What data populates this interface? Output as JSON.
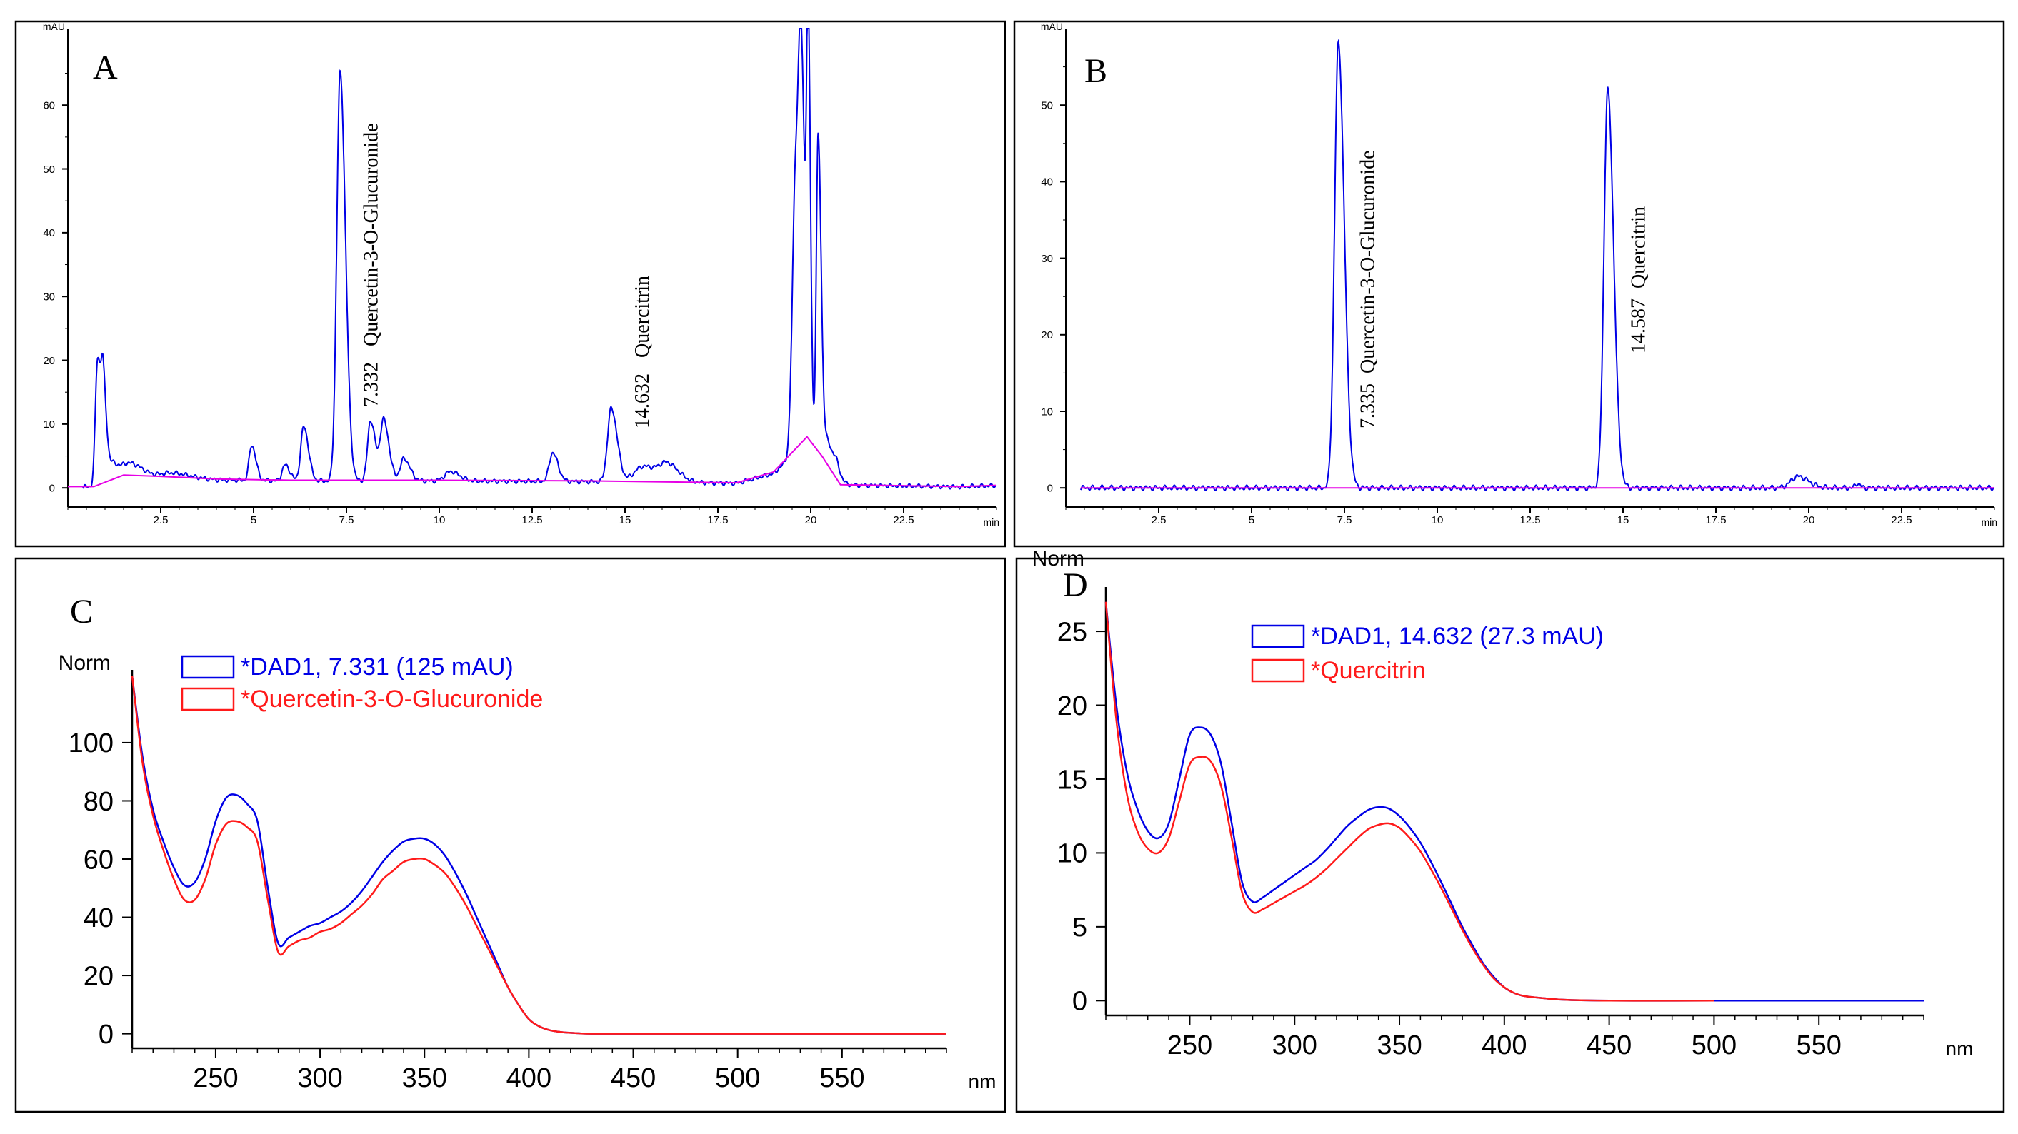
{
  "colors": {
    "sample": "#0000e6",
    "reference": "#ff1a1a",
    "baseline": "#e600e6",
    "axis": "#000000"
  },
  "chart_data": [
    {
      "id": "A",
      "panel_label": "A",
      "type": "line",
      "title": "",
      "ylabel": "mAU",
      "xlabel": "min",
      "xlim": [
        0,
        25
      ],
      "ylim": [
        -3,
        72
      ],
      "x_ticks": [
        "2.5",
        "5",
        "7.5",
        "10",
        "12.5",
        "15",
        "17.5",
        "20",
        "22.5"
      ],
      "y_ticks": [
        "0",
        "10",
        "20",
        "30",
        "40",
        "50",
        "60"
      ],
      "peaks": [
        {
          "rt": 0.8,
          "height": 19.5,
          "width": 0.06
        },
        {
          "rt": 0.95,
          "height": 12,
          "width": 0.05
        },
        {
          "rt": 1.1,
          "height": 3,
          "width": 0.15
        },
        {
          "rt": 1.7,
          "height": 2,
          "width": 0.2
        },
        {
          "rt": 2.8,
          "height": 0.8,
          "width": 0.3
        },
        {
          "rt": 4.95,
          "height": 5.5,
          "width": 0.07
        },
        {
          "rt": 5.85,
          "height": 2.5,
          "width": 0.08
        },
        {
          "rt": 6.35,
          "height": 8.5,
          "width": 0.08
        },
        {
          "rt": 7.33,
          "height": 64,
          "width": 0.09
        },
        {
          "rt": 8.15,
          "height": 9.5,
          "width": 0.08
        },
        {
          "rt": 8.5,
          "height": 9.5,
          "width": 0.09
        },
        {
          "rt": 9.05,
          "height": 3.5,
          "width": 0.1
        },
        {
          "rt": 10.3,
          "height": 1.5,
          "width": 0.15
        },
        {
          "rt": 13.05,
          "height": 4.5,
          "width": 0.09
        },
        {
          "rt": 14.63,
          "height": 11.5,
          "width": 0.1
        },
        {
          "rt": 15.5,
          "height": 2.5,
          "width": 0.25
        },
        {
          "rt": 16.15,
          "height": 2.5,
          "width": 0.2
        },
        {
          "rt": 19.6,
          "height": 45,
          "width": 0.09
        },
        {
          "rt": 19.75,
          "height": 40,
          "width": 0.07
        },
        {
          "rt": 19.93,
          "height": 59,
          "width": 0.04
        },
        {
          "rt": 20.2,
          "height": 50,
          "width": 0.05
        },
        {
          "rt": 20.45,
          "height": 4,
          "width": 0.1
        },
        {
          "rt": 20.7,
          "height": 2,
          "width": 0.08
        }
      ],
      "baseline_shape": [
        [
          0,
          0.2
        ],
        [
          0.7,
          0.2
        ],
        [
          1.5,
          2
        ],
        [
          2.5,
          1.8
        ],
        [
          4,
          1.4
        ],
        [
          6,
          1.2
        ],
        [
          10,
          1.2
        ],
        [
          14,
          1.1
        ],
        [
          18,
          0.8
        ],
        [
          19,
          2.5
        ],
        [
          19.9,
          8
        ],
        [
          20.3,
          5
        ],
        [
          20.8,
          0.5
        ],
        [
          24,
          0.2
        ],
        [
          25,
          0.4
        ]
      ],
      "annotations": [
        {
          "rt_label": "7.332",
          "name": "Quercetin-3-O-Glucuronide",
          "x": 7.332
        },
        {
          "rt_label": "14.632",
          "name": "Quercitrin",
          "x": 14.632
        }
      ]
    },
    {
      "id": "B",
      "panel_label": "B",
      "type": "line",
      "title": "",
      "ylabel": "mAU",
      "xlabel": "min",
      "xlim": [
        0,
        25
      ],
      "ylim": [
        -2.5,
        60
      ],
      "x_ticks": [
        "2.5",
        "5",
        "7.5",
        "10",
        "12.5",
        "15",
        "17.5",
        "20",
        "22.5"
      ],
      "y_ticks": [
        "0",
        "10",
        "20",
        "30",
        "40",
        "50"
      ],
      "peaks": [
        {
          "rt": 7.335,
          "height": 58,
          "width": 0.1
        },
        {
          "rt": 14.587,
          "height": 52,
          "width": 0.1
        },
        {
          "rt": 19.7,
          "height": 1.5,
          "width": 0.18
        },
        {
          "rt": 21.3,
          "height": 0.6,
          "width": 0.05
        }
      ],
      "annotations": [
        {
          "rt_label": "7.335",
          "name": "Quercetin-3-O-Glucuronide",
          "x": 7.335
        },
        {
          "rt_label": "14.587",
          "name": "Quercitrin",
          "x": 14.587
        }
      ]
    },
    {
      "id": "C",
      "panel_label": "C",
      "type": "line",
      "title": "",
      "ylabel": "Norm",
      "xlabel": "nm",
      "xlim": [
        210,
        600
      ],
      "ylim": [
        -5,
        125
      ],
      "x_ticks": [
        "250",
        "300",
        "350",
        "400",
        "450",
        "500",
        "550"
      ],
      "y_ticks": [
        "0",
        "20",
        "40",
        "60",
        "80",
        "100"
      ],
      "series": [
        {
          "name": "*DAD1, 7.331 (125 mAU)",
          "color": "#0000e6",
          "x": [
            210,
            215,
            220,
            225,
            230,
            235,
            240,
            245,
            250,
            255,
            260,
            265,
            270,
            275,
            280,
            285,
            290,
            295,
            300,
            305,
            310,
            315,
            320,
            325,
            330,
            335,
            340,
            345,
            350,
            355,
            360,
            365,
            370,
            375,
            380,
            385,
            390,
            395,
            400,
            405,
            410,
            415,
            420,
            425,
            430,
            440,
            450,
            470,
            500,
            550,
            600
          ],
          "y": [
            123,
            95,
            77,
            66,
            57,
            51,
            52,
            60,
            73,
            81,
            82,
            79,
            73,
            50,
            31,
            33,
            35,
            37,
            38,
            40,
            42,
            45,
            49,
            54,
            59,
            63,
            66,
            67,
            67,
            65,
            61,
            55,
            48,
            40,
            32,
            24,
            16,
            10,
            5,
            2.5,
            1.2,
            0.6,
            0.3,
            0.1,
            0,
            0,
            0,
            0,
            0,
            0,
            0
          ]
        },
        {
          "name": "*Quercetin-3-O-Glucuronide",
          "color": "#ff1a1a",
          "x": [
            210,
            215,
            220,
            225,
            230,
            235,
            240,
            245,
            250,
            255,
            260,
            265,
            270,
            275,
            280,
            285,
            290,
            295,
            300,
            305,
            310,
            315,
            320,
            325,
            330,
            335,
            340,
            345,
            350,
            355,
            360,
            365,
            370,
            375,
            380,
            385,
            390,
            395,
            400,
            405,
            410,
            415,
            420,
            425,
            430,
            440,
            450,
            470,
            500,
            550,
            600
          ],
          "y": [
            123,
            93,
            75,
            63,
            53,
            46,
            46,
            53,
            65,
            72,
            73,
            71,
            66,
            46,
            28,
            30,
            32,
            33,
            35,
            36,
            38,
            41,
            44,
            48,
            53,
            56,
            59,
            60,
            60,
            58,
            55,
            50,
            44,
            37,
            30,
            23,
            16,
            10,
            5,
            2.5,
            1.2,
            0.6,
            0.3,
            0.1,
            0,
            0,
            0,
            0,
            0,
            0,
            0
          ]
        }
      ]
    },
    {
      "id": "D",
      "panel_label": "D",
      "type": "line",
      "title": "",
      "ylabel": "Norm",
      "xlabel": "nm",
      "xlim": [
        210,
        600
      ],
      "ylim": [
        -1,
        28
      ],
      "x_ticks": [
        "250",
        "300",
        "350",
        "400",
        "450",
        "500",
        "550"
      ],
      "y_ticks": [
        "0",
        "5",
        "10",
        "15",
        "20",
        "25"
      ],
      "series": [
        {
          "name": "*DAD1, 14.632 (27.3 mAU)",
          "color": "#0000e6",
          "x": [
            210,
            215,
            220,
            225,
            230,
            235,
            240,
            245,
            250,
            255,
            260,
            265,
            270,
            275,
            280,
            285,
            290,
            295,
            300,
            305,
            310,
            315,
            320,
            325,
            330,
            335,
            340,
            345,
            350,
            355,
            360,
            365,
            370,
            375,
            380,
            385,
            390,
            395,
            400,
            405,
            410,
            420,
            430,
            450,
            500,
            550,
            600
          ],
          "y": [
            27,
            20,
            15.5,
            13,
            11.5,
            11,
            12,
            15,
            18,
            18.5,
            18,
            16,
            12,
            8,
            6.7,
            7,
            7.5,
            8,
            8.5,
            9,
            9.5,
            10.2,
            11,
            11.8,
            12.4,
            12.9,
            13.1,
            13,
            12.5,
            11.7,
            10.7,
            9.4,
            8,
            6.5,
            5,
            3.7,
            2.5,
            1.6,
            0.9,
            0.5,
            0.3,
            0.15,
            0.05,
            0,
            0,
            0,
            0
          ]
        },
        {
          "name": "*Quercitrin",
          "color": "#ff1a1a",
          "x": [
            210,
            215,
            220,
            225,
            230,
            235,
            240,
            245,
            250,
            255,
            260,
            265,
            270,
            275,
            280,
            285,
            290,
            295,
            300,
            305,
            310,
            315,
            320,
            325,
            330,
            335,
            340,
            345,
            350,
            355,
            360,
            365,
            370,
            375,
            380,
            385,
            390,
            395,
            400,
            405,
            410,
            420,
            430,
            450,
            500
          ],
          "y": [
            27,
            19,
            14,
            11.5,
            10.3,
            10,
            11,
            13.5,
            16,
            16.5,
            16.2,
            14.5,
            11,
            7.3,
            6,
            6.2,
            6.6,
            7,
            7.4,
            7.8,
            8.3,
            8.9,
            9.6,
            10.3,
            11,
            11.6,
            11.9,
            12,
            11.7,
            11,
            10.1,
            8.9,
            7.6,
            6.2,
            4.8,
            3.5,
            2.4,
            1.5,
            0.9,
            0.5,
            0.3,
            0.15,
            0.05,
            0,
            0
          ]
        }
      ]
    }
  ]
}
